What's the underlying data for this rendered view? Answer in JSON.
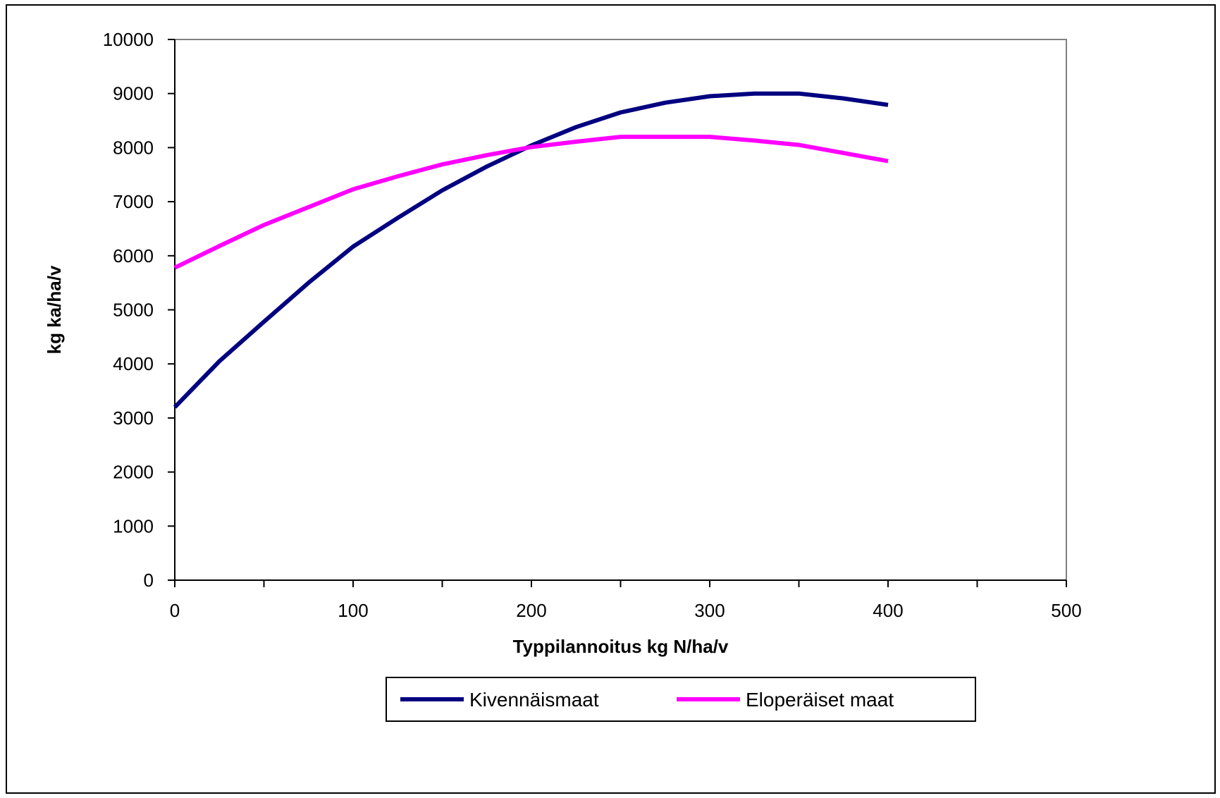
{
  "chart_data": {
    "type": "line",
    "xlabel": "Typpilannoitus kg N/ha/v",
    "ylabel": "kg ka/ha/v",
    "xlim": [
      0,
      500
    ],
    "ylim": [
      0,
      10000
    ],
    "x_ticks": [
      0,
      100,
      200,
      300,
      400,
      500
    ],
    "y_ticks": [
      0,
      1000,
      2000,
      3000,
      4000,
      5000,
      6000,
      7000,
      8000,
      9000,
      10000
    ],
    "x_minor_ticks": [
      50,
      150,
      250,
      350,
      450
    ],
    "grid": false,
    "legend_position": "bottom",
    "x": [
      0,
      25,
      50,
      75,
      100,
      125,
      150,
      175,
      200,
      225,
      250,
      275,
      300,
      325,
      350,
      375,
      400
    ],
    "series": [
      {
        "name": "Kivennäismaat",
        "color": "#000080",
        "values": [
          3200,
          4050,
          4780,
          5500,
          6170,
          6700,
          7210,
          7650,
          8040,
          8380,
          8650,
          8830,
          8950,
          9000,
          9000,
          8910,
          8790
        ]
      },
      {
        "name": "Eloperäiset maat",
        "color": "#FF00FF",
        "values": [
          5780,
          6180,
          6570,
          6900,
          7230,
          7470,
          7690,
          7860,
          8010,
          8110,
          8200,
          8200,
          8200,
          8130,
          8050,
          7900,
          7750
        ]
      }
    ]
  }
}
